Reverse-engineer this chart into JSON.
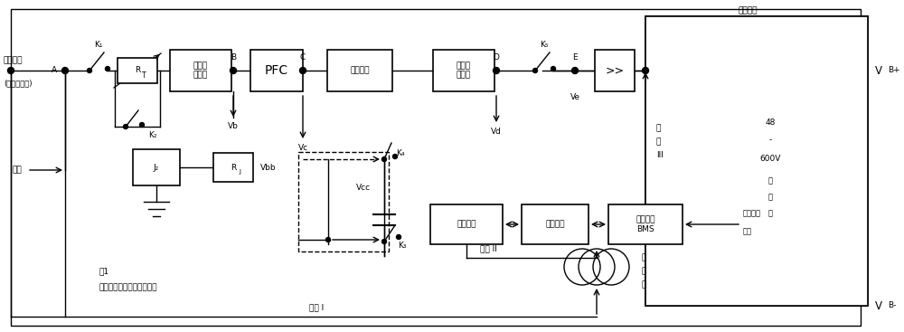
{
  "bg_color": "#ffffff",
  "fig_label": "图1",
  "fig_caption": "大功率充电控制系统架构图",
  "ac_input": "交流输入",
  "ac_sub": "(单相或三相)",
  "setup_label": "设置",
  "charging_port": "充电端口",
  "vb_plus": "VB+",
  "vb_minus": "VB-",
  "batt_lines": [
    "48",
    "-",
    "600V",
    "电",
    "池",
    "组"
  ],
  "channel1": "通道 I",
  "channel2": "通道 II",
  "channel3a": "通",
  "channel3b": "道",
  "channel3c": "III",
  "coupler_label": "耦\n合\n器",
  "batt_status1": "电池状态",
  "batt_status2": "信号",
  "block_labels": {
    "rect_filter": "输入整\n流滤波",
    "pfc": "PFC",
    "pow_conv": "功率转换",
    "out_filter": "输出整\n流滤波",
    "pow_mgr": "电源管理",
    "charge_mgr": "充电管理",
    "bms": "电池管理\nBMS",
    "connector": ">>"
  }
}
